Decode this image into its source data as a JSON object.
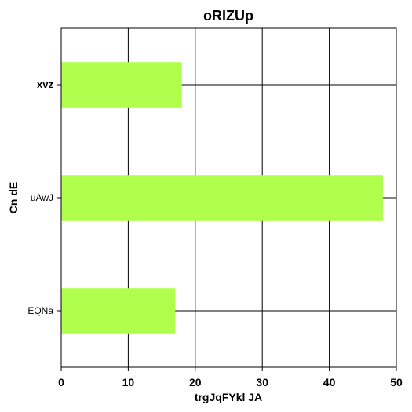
{
  "chart_data": {
    "type": "bar",
    "orientation": "horizontal",
    "title": "oRIZUp",
    "xlabel": "trgJqFYkl JA",
    "ylabel": "Cn  dE",
    "categories": [
      "EQNa",
      "uAwJ",
      "xvz"
    ],
    "values": [
      17,
      48,
      18
    ],
    "xlim": [
      0,
      50
    ],
    "xticks": [
      0,
      10,
      20,
      30,
      40,
      50
    ],
    "grid": true,
    "bar_color": "#b0ff4d"
  }
}
